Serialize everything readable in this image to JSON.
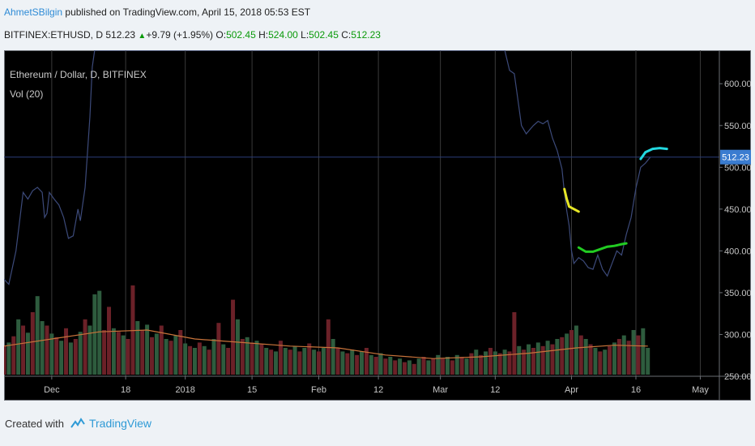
{
  "header": {
    "author": "AhmetSBilgin",
    "published": "published on TradingView.com, April 15, 2018 05:53 EST",
    "symbol": "BITFINEX:ETHUSD, D",
    "last": "512.23",
    "change": "+9.79 (+1.95%)",
    "o_label": "O:",
    "o_value": "502.45",
    "h_label": "H:",
    "h_value": "524.00",
    "l_label": "L:",
    "l_value": "502.45",
    "c_label": "C:",
    "c_value": "512.23"
  },
  "legend": {
    "main": "Ethereum / Dollar, D, BITFINEX",
    "vol": "Vol (20)"
  },
  "footer": {
    "created_with": "Created with",
    "brand": "TradingView"
  },
  "colors": {
    "background": "#000000",
    "price_line": "#3c4a7a",
    "vol_up": "#2e5c3e",
    "vol_down": "#6b2128",
    "vol_ma": "#c8733a",
    "last_price_tag": "#3a7cd0",
    "grid": "#3a3a3a",
    "axis_text": "#c6c6c6",
    "yellow_mark": "#e6e626",
    "green_mark": "#22cc22",
    "cyan_mark": "#22d8e0"
  },
  "chart_data": {
    "type": "line",
    "symbol": "BITFINEX:ETHUSD",
    "interval": "D",
    "x_ticks": [
      "Dec",
      "18",
      "2018",
      "15",
      "Feb",
      "12",
      "Mar",
      "12",
      "Apr",
      "16",
      "May"
    ],
    "y_ticks": [
      "600.00",
      "550.00",
      "500.00",
      "450.00",
      "400.00",
      "350.00",
      "300.00",
      "250.00"
    ],
    "ylim": [
      250,
      640
    ],
    "last_price_label": "512.23",
    "last_price": 512.23,
    "price_series": [
      {
        "t": 0,
        "v": 366
      },
      {
        "t": 2,
        "v": 360
      },
      {
        "t": 5,
        "v": 400
      },
      {
        "t": 8,
        "v": 470
      },
      {
        "t": 10,
        "v": 462
      },
      {
        "t": 12,
        "v": 472
      },
      {
        "t": 14,
        "v": 476
      },
      {
        "t": 16,
        "v": 470
      },
      {
        "t": 17,
        "v": 440
      },
      {
        "t": 18,
        "v": 445
      },
      {
        "t": 19,
        "v": 470
      },
      {
        "t": 21,
        "v": 462
      },
      {
        "t": 23,
        "v": 455
      },
      {
        "t": 25,
        "v": 440
      },
      {
        "t": 27,
        "v": 415
      },
      {
        "t": 29,
        "v": 418
      },
      {
        "t": 31,
        "v": 450
      },
      {
        "t": 32,
        "v": 436
      },
      {
        "t": 34,
        "v": 476
      },
      {
        "t": 36,
        "v": 560
      },
      {
        "t": 37,
        "v": 620
      },
      {
        "t": 38,
        "v": 640
      },
      {
        "t": 210,
        "v": 640
      },
      {
        "t": 212,
        "v": 616
      },
      {
        "t": 214,
        "v": 612
      },
      {
        "t": 217,
        "v": 550
      },
      {
        "t": 219,
        "v": 540
      },
      {
        "t": 222,
        "v": 550
      },
      {
        "t": 224,
        "v": 555
      },
      {
        "t": 226,
        "v": 552
      },
      {
        "t": 228,
        "v": 556
      },
      {
        "t": 230,
        "v": 535
      },
      {
        "t": 232,
        "v": 520
      },
      {
        "t": 234,
        "v": 498
      },
      {
        "t": 235,
        "v": 470
      },
      {
        "t": 236,
        "v": 448
      },
      {
        "t": 237,
        "v": 430
      },
      {
        "t": 238,
        "v": 400
      },
      {
        "t": 239,
        "v": 385
      },
      {
        "t": 241,
        "v": 392
      },
      {
        "t": 243,
        "v": 388
      },
      {
        "t": 245,
        "v": 380
      },
      {
        "t": 247,
        "v": 378
      },
      {
        "t": 249,
        "v": 395
      },
      {
        "t": 251,
        "v": 378
      },
      {
        "t": 253,
        "v": 370
      },
      {
        "t": 255,
        "v": 385
      },
      {
        "t": 257,
        "v": 400
      },
      {
        "t": 259,
        "v": 395
      },
      {
        "t": 261,
        "v": 420
      },
      {
        "t": 263,
        "v": 440
      },
      {
        "t": 265,
        "v": 475
      },
      {
        "t": 267,
        "v": 500
      },
      {
        "t": 269,
        "v": 505
      },
      {
        "t": 271,
        "v": 512
      }
    ],
    "markers": [
      {
        "color": "yellow",
        "points": [
          {
            "t": 235,
            "v": 474
          },
          {
            "t": 236,
            "v": 462
          },
          {
            "t": 237,
            "v": 453
          },
          {
            "t": 239,
            "v": 450
          },
          {
            "t": 241,
            "v": 447
          }
        ]
      },
      {
        "color": "green",
        "points": [
          {
            "t": 241,
            "v": 404
          },
          {
            "t": 244,
            "v": 399
          },
          {
            "t": 247,
            "v": 399
          },
          {
            "t": 250,
            "v": 402
          },
          {
            "t": 253,
            "v": 405
          },
          {
            "t": 256,
            "v": 406
          },
          {
            "t": 259,
            "v": 408
          },
          {
            "t": 261,
            "v": 409
          }
        ]
      },
      {
        "color": "cyan",
        "points": [
          {
            "t": 267,
            "v": 510
          },
          {
            "t": 269,
            "v": 518
          },
          {
            "t": 272,
            "v": 522
          },
          {
            "t": 275,
            "v": 523
          },
          {
            "t": 278,
            "v": 522
          }
        ]
      }
    ],
    "volume": [
      {
        "t": 0,
        "v": 0.32,
        "up": false
      },
      {
        "t": 2,
        "v": 0.36,
        "up": true
      },
      {
        "t": 4,
        "v": 0.43,
        "up": false
      },
      {
        "t": 6,
        "v": 0.62,
        "up": true
      },
      {
        "t": 8,
        "v": 0.55,
        "up": false
      },
      {
        "t": 10,
        "v": 0.47,
        "up": true
      },
      {
        "t": 12,
        "v": 0.7,
        "up": false
      },
      {
        "t": 14,
        "v": 0.88,
        "up": true
      },
      {
        "t": 16,
        "v": 0.6,
        "up": true
      },
      {
        "t": 18,
        "v": 0.55,
        "up": false
      },
      {
        "t": 20,
        "v": 0.46,
        "up": true
      },
      {
        "t": 22,
        "v": 0.42,
        "up": false
      },
      {
        "t": 24,
        "v": 0.38,
        "up": true
      },
      {
        "t": 26,
        "v": 0.52,
        "up": false
      },
      {
        "t": 28,
        "v": 0.36,
        "up": true
      },
      {
        "t": 30,
        "v": 0.4,
        "up": false
      },
      {
        "t": 32,
        "v": 0.48,
        "up": true
      },
      {
        "t": 34,
        "v": 0.62,
        "up": false
      },
      {
        "t": 36,
        "v": 0.55,
        "up": true
      },
      {
        "t": 38,
        "v": 0.9,
        "up": true
      },
      {
        "t": 40,
        "v": 0.94,
        "up": true
      },
      {
        "t": 42,
        "v": 0.5,
        "up": false
      },
      {
        "t": 44,
        "v": 0.76,
        "up": false
      },
      {
        "t": 46,
        "v": 0.52,
        "up": true
      },
      {
        "t": 48,
        "v": 0.48,
        "up": false
      },
      {
        "t": 50,
        "v": 0.44,
        "up": true
      },
      {
        "t": 52,
        "v": 0.4,
        "up": false
      },
      {
        "t": 54,
        "v": 1.0,
        "up": false
      },
      {
        "t": 56,
        "v": 0.6,
        "up": true
      },
      {
        "t": 58,
        "v": 0.5,
        "up": false
      },
      {
        "t": 60,
        "v": 0.56,
        "up": true
      },
      {
        "t": 62,
        "v": 0.42,
        "up": false
      },
      {
        "t": 64,
        "v": 0.46,
        "up": true
      },
      {
        "t": 66,
        "v": 0.55,
        "up": false
      },
      {
        "t": 68,
        "v": 0.4,
        "up": true
      },
      {
        "t": 70,
        "v": 0.38,
        "up": false
      },
      {
        "t": 72,
        "v": 0.44,
        "up": true
      },
      {
        "t": 74,
        "v": 0.5,
        "up": false
      },
      {
        "t": 76,
        "v": 0.35,
        "up": true
      },
      {
        "t": 78,
        "v": 0.32,
        "up": false
      },
      {
        "t": 80,
        "v": 0.3,
        "up": true
      },
      {
        "t": 82,
        "v": 0.36,
        "up": false
      },
      {
        "t": 84,
        "v": 0.32,
        "up": true
      },
      {
        "t": 86,
        "v": 0.28,
        "up": false
      },
      {
        "t": 88,
        "v": 0.4,
        "up": true
      },
      {
        "t": 90,
        "v": 0.58,
        "up": false
      },
      {
        "t": 92,
        "v": 0.34,
        "up": true
      },
      {
        "t": 94,
        "v": 0.3,
        "up": false
      },
      {
        "t": 96,
        "v": 0.84,
        "up": false
      },
      {
        "t": 98,
        "v": 0.62,
        "up": true
      },
      {
        "t": 100,
        "v": 0.4,
        "up": false
      },
      {
        "t": 102,
        "v": 0.42,
        "up": true
      },
      {
        "t": 104,
        "v": 0.36,
        "up": false
      },
      {
        "t": 106,
        "v": 0.38,
        "up": true
      },
      {
        "t": 108,
        "v": 0.34,
        "up": false
      },
      {
        "t": 110,
        "v": 0.3,
        "up": true
      },
      {
        "t": 112,
        "v": 0.28,
        "up": false
      },
      {
        "t": 114,
        "v": 0.26,
        "up": true
      },
      {
        "t": 116,
        "v": 0.38,
        "up": false
      },
      {
        "t": 118,
        "v": 0.3,
        "up": true
      },
      {
        "t": 120,
        "v": 0.28,
        "up": false
      },
      {
        "t": 122,
        "v": 0.32,
        "up": true
      },
      {
        "t": 124,
        "v": 0.26,
        "up": false
      },
      {
        "t": 126,
        "v": 0.3,
        "up": true
      },
      {
        "t": 128,
        "v": 0.35,
        "up": false
      },
      {
        "t": 130,
        "v": 0.28,
        "up": true
      },
      {
        "t": 132,
        "v": 0.26,
        "up": false
      },
      {
        "t": 134,
        "v": 0.3,
        "up": true
      },
      {
        "t": 136,
        "v": 0.62,
        "up": false
      },
      {
        "t": 138,
        "v": 0.4,
        "up": true
      },
      {
        "t": 140,
        "v": 0.3,
        "up": false
      },
      {
        "t": 142,
        "v": 0.26,
        "up": true
      },
      {
        "t": 144,
        "v": 0.24,
        "up": false
      },
      {
        "t": 146,
        "v": 0.28,
        "up": true
      },
      {
        "t": 148,
        "v": 0.22,
        "up": false
      },
      {
        "t": 150,
        "v": 0.26,
        "up": true
      },
      {
        "t": 152,
        "v": 0.3,
        "up": false
      },
      {
        "t": 154,
        "v": 0.22,
        "up": true
      },
      {
        "t": 156,
        "v": 0.2,
        "up": false
      },
      {
        "t": 158,
        "v": 0.24,
        "up": true
      },
      {
        "t": 160,
        "v": 0.18,
        "up": false
      },
      {
        "t": 162,
        "v": 0.2,
        "up": true
      },
      {
        "t": 164,
        "v": 0.16,
        "up": false
      },
      {
        "t": 166,
        "v": 0.18,
        "up": true
      },
      {
        "t": 168,
        "v": 0.14,
        "up": false
      },
      {
        "t": 170,
        "v": 0.16,
        "up": true
      },
      {
        "t": 172,
        "v": 0.12,
        "up": false
      },
      {
        "t": 174,
        "v": 0.18,
        "up": true
      },
      {
        "t": 176,
        "v": 0.2,
        "up": false
      },
      {
        "t": 178,
        "v": 0.16,
        "up": true
      },
      {
        "t": 180,
        "v": 0.18,
        "up": false
      },
      {
        "t": 182,
        "v": 0.22,
        "up": true
      },
      {
        "t": 184,
        "v": 0.18,
        "up": false
      },
      {
        "t": 186,
        "v": 0.2,
        "up": true
      },
      {
        "t": 188,
        "v": 0.16,
        "up": false
      },
      {
        "t": 190,
        "v": 0.22,
        "up": true
      },
      {
        "t": 192,
        "v": 0.2,
        "up": false
      },
      {
        "t": 194,
        "v": 0.18,
        "up": true
      },
      {
        "t": 196,
        "v": 0.24,
        "up": false
      },
      {
        "t": 198,
        "v": 0.28,
        "up": true
      },
      {
        "t": 200,
        "v": 0.22,
        "up": false
      },
      {
        "t": 202,
        "v": 0.26,
        "up": true
      },
      {
        "t": 204,
        "v": 0.3,
        "up": false
      },
      {
        "t": 206,
        "v": 0.26,
        "up": true
      },
      {
        "t": 208,
        "v": 0.24,
        "up": false
      },
      {
        "t": 210,
        "v": 0.28,
        "up": true
      },
      {
        "t": 212,
        "v": 0.26,
        "up": false
      },
      {
        "t": 214,
        "v": 0.7,
        "up": false
      },
      {
        "t": 216,
        "v": 0.32,
        "up": true
      },
      {
        "t": 218,
        "v": 0.28,
        "up": false
      },
      {
        "t": 220,
        "v": 0.34,
        "up": true
      },
      {
        "t": 222,
        "v": 0.3,
        "up": false
      },
      {
        "t": 224,
        "v": 0.36,
        "up": true
      },
      {
        "t": 226,
        "v": 0.32,
        "up": false
      },
      {
        "t": 228,
        "v": 0.38,
        "up": true
      },
      {
        "t": 230,
        "v": 0.34,
        "up": false
      },
      {
        "t": 232,
        "v": 0.4,
        "up": true
      },
      {
        "t": 234,
        "v": 0.42,
        "up": false
      },
      {
        "t": 236,
        "v": 0.46,
        "up": true
      },
      {
        "t": 238,
        "v": 0.5,
        "up": false
      },
      {
        "t": 240,
        "v": 0.55,
        "up": true
      },
      {
        "t": 242,
        "v": 0.44,
        "up": false
      },
      {
        "t": 244,
        "v": 0.4,
        "up": true
      },
      {
        "t": 246,
        "v": 0.34,
        "up": false
      },
      {
        "t": 248,
        "v": 0.3,
        "up": true
      },
      {
        "t": 250,
        "v": 0.26,
        "up": false
      },
      {
        "t": 252,
        "v": 0.28,
        "up": true
      },
      {
        "t": 254,
        "v": 0.32,
        "up": false
      },
      {
        "t": 256,
        "v": 0.36,
        "up": true
      },
      {
        "t": 258,
        "v": 0.4,
        "up": false
      },
      {
        "t": 260,
        "v": 0.44,
        "up": true
      },
      {
        "t": 262,
        "v": 0.38,
        "up": false
      },
      {
        "t": 264,
        "v": 0.5,
        "up": true
      },
      {
        "t": 266,
        "v": 0.44,
        "up": false
      },
      {
        "t": 268,
        "v": 0.52,
        "up": true
      },
      {
        "t": 270,
        "v": 0.3,
        "up": true
      }
    ],
    "volume_ma": [
      {
        "t": 0,
        "v": 0.32
      },
      {
        "t": 20,
        "v": 0.4
      },
      {
        "t": 40,
        "v": 0.48
      },
      {
        "t": 60,
        "v": 0.5
      },
      {
        "t": 80,
        "v": 0.4
      },
      {
        "t": 100,
        "v": 0.36
      },
      {
        "t": 120,
        "v": 0.32
      },
      {
        "t": 140,
        "v": 0.3
      },
      {
        "t": 160,
        "v": 0.22
      },
      {
        "t": 180,
        "v": 0.18
      },
      {
        "t": 200,
        "v": 0.2
      },
      {
        "t": 220,
        "v": 0.24
      },
      {
        "t": 240,
        "v": 0.3
      },
      {
        "t": 256,
        "v": 0.33
      },
      {
        "t": 270,
        "v": 0.32
      }
    ]
  }
}
